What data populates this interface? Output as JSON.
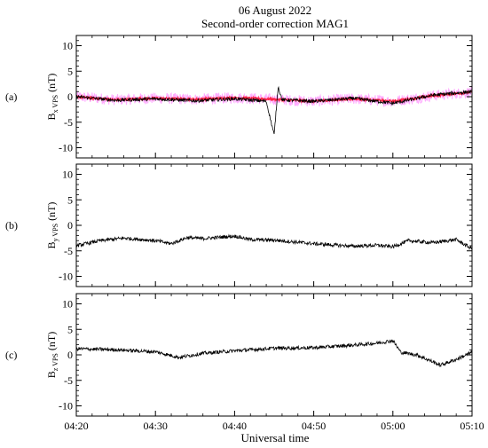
{
  "figure": {
    "title_line1": "06 August 2022",
    "title_line2": "Second-order correction MAG1",
    "xlabel": "Universal time"
  },
  "chart_data": [
    {
      "type": "line",
      "panel_label": "(a)",
      "ylabel_main": "B",
      "ylabel_sub": "x VPS",
      "ylabel_unit": " (nT)",
      "ylim": [
        -12,
        12
      ],
      "yticks": [
        "10",
        "5",
        "0",
        "-5",
        "-10"
      ],
      "xlim": [
        "04:20",
        "05:10"
      ],
      "xticks": [
        "04:20",
        "04:30",
        "04:40",
        "04:50",
        "05:00",
        "05:10"
      ],
      "series": [
        {
          "color": "#ff66ff",
          "role": "noise envelope",
          "x": [
            "04:20",
            "04:25",
            "04:30",
            "04:35",
            "04:40",
            "04:45",
            "04:50",
            "04:55",
            "05:00",
            "05:05",
            "05:10"
          ],
          "values": [
            0.0,
            -0.6,
            -0.3,
            -0.5,
            -0.2,
            -0.5,
            -0.9,
            -0.4,
            -0.9,
            0.2,
            0.9
          ]
        },
        {
          "color": "#ff2244",
          "role": "corrected",
          "x": [
            "04:20",
            "04:25",
            "04:30",
            "04:35",
            "04:40",
            "04:45",
            "04:50",
            "04:55",
            "05:00",
            "05:05",
            "05:10"
          ],
          "values": [
            0.0,
            -0.6,
            -0.3,
            -0.5,
            -0.2,
            -0.5,
            -0.9,
            -0.4,
            -0.9,
            0.2,
            0.9
          ]
        },
        {
          "color": "#000000",
          "role": "original",
          "x": [
            "04:20",
            "04:25",
            "04:30",
            "04:35",
            "04:40",
            "04:44",
            "04:45",
            "04:45:30",
            "04:46",
            "04:50",
            "04:55",
            "05:00",
            "05:05",
            "05:10"
          ],
          "values": [
            0.0,
            -0.7,
            -0.4,
            -0.8,
            -0.4,
            -0.9,
            -7.5,
            2.0,
            -0.6,
            -0.9,
            -0.3,
            -1.3,
            0.3,
            1.0
          ]
        }
      ]
    },
    {
      "type": "line",
      "panel_label": "(b)",
      "ylabel_main": "B",
      "ylabel_sub": "y VPS",
      "ylabel_unit": " (nT)",
      "ylim": [
        -12,
        12
      ],
      "yticks": [
        "10",
        "5",
        "0",
        "-5",
        "-10"
      ],
      "xlim": [
        "04:20",
        "05:10"
      ],
      "xticks": [
        "04:20",
        "04:30",
        "04:40",
        "04:50",
        "05:00",
        "05:10"
      ],
      "series": [
        {
          "color": "#000000",
          "x": [
            "04:20",
            "04:23",
            "04:26",
            "04:30",
            "04:32",
            "04:34",
            "04:36",
            "04:40",
            "04:42",
            "04:45",
            "04:50",
            "04:55",
            "04:58",
            "05:00",
            "05:02",
            "05:05",
            "05:08",
            "05:10"
          ],
          "values": [
            -4.0,
            -3.0,
            -2.5,
            -3.0,
            -3.6,
            -2.4,
            -2.6,
            -2.1,
            -2.8,
            -2.9,
            -3.6,
            -4.1,
            -3.9,
            -4.2,
            -3.0,
            -3.4,
            -2.8,
            -4.6
          ]
        }
      ]
    },
    {
      "type": "line",
      "panel_label": "(c)",
      "ylabel_main": "B",
      "ylabel_sub": "z VPS",
      "ylabel_unit": " (nT)",
      "ylim": [
        -12,
        12
      ],
      "yticks": [
        "10",
        "5",
        "0",
        "-5",
        "-10"
      ],
      "xlim": [
        "04:20",
        "05:10"
      ],
      "xticks": [
        "04:20",
        "04:30",
        "04:40",
        "04:50",
        "05:00",
        "05:10"
      ],
      "series": [
        {
          "color": "#000000",
          "x": [
            "04:20",
            "04:25",
            "04:30",
            "04:33",
            "04:36",
            "04:40",
            "04:45",
            "04:50",
            "04:55",
            "04:58",
            "05:00",
            "05:01",
            "05:03",
            "05:06",
            "05:08",
            "05:10"
          ],
          "values": [
            1.2,
            1.0,
            0.6,
            -0.5,
            0.3,
            0.8,
            1.3,
            1.4,
            1.9,
            2.3,
            2.8,
            0.5,
            0.0,
            -2.0,
            -0.9,
            0.5
          ]
        }
      ]
    }
  ]
}
